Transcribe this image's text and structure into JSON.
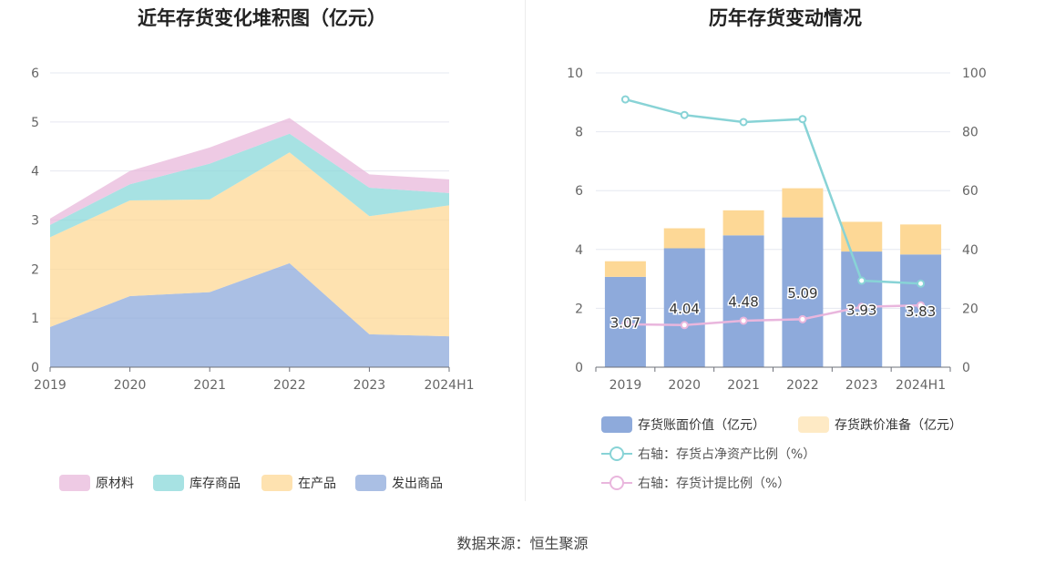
{
  "source_prefix": "数据来源：",
  "source_name": "恒生聚源",
  "chart_data": [
    {
      "type": "area",
      "stacked": true,
      "title": "近年存货变化堆积图（亿元）",
      "categories": [
        "2019",
        "2020",
        "2021",
        "2022",
        "2023",
        "2024H1"
      ],
      "ylim": [
        0,
        6
      ],
      "yticks": [
        0,
        1,
        2,
        3,
        4,
        5,
        6
      ],
      "grid": true,
      "legend_position": "bottom",
      "series": [
        {
          "name": "发出商品",
          "color": "#8eaadb",
          "values": [
            0.82,
            1.45,
            1.53,
            2.12,
            0.67,
            0.63
          ]
        },
        {
          "name": "在产品",
          "color": "#fdd896",
          "values": [
            1.83,
            1.95,
            1.89,
            2.26,
            2.41,
            2.67
          ]
        },
        {
          "name": "库存商品",
          "color": "#89d8da",
          "values": [
            0.25,
            0.33,
            0.73,
            0.38,
            0.58,
            0.25
          ]
        },
        {
          "name": "原材料",
          "color": "#e8b8db",
          "values": [
            0.13,
            0.27,
            0.33,
            0.32,
            0.27,
            0.28
          ]
        }
      ],
      "legend_order": [
        "原材料",
        "库存商品",
        "在产品",
        "发出商品"
      ]
    },
    {
      "type": "bar",
      "stacked": true,
      "title": "历年存货变动情况",
      "categories": [
        "2019",
        "2020",
        "2021",
        "2022",
        "2023",
        "2024H1"
      ],
      "ylim_left": [
        0,
        10
      ],
      "yticks_left": [
        0,
        2,
        4,
        6,
        8,
        10
      ],
      "ylim_right": [
        0,
        100
      ],
      "yticks_right": [
        0,
        20,
        40,
        60,
        80,
        100
      ],
      "grid": true,
      "legend_position": "bottom",
      "bar_series": [
        {
          "name": "存货账面价值（亿元）",
          "color": "#8eaadb",
          "values": [
            3.07,
            4.04,
            4.48,
            5.09,
            3.93,
            3.83
          ],
          "labels": [
            "3.07",
            "4.04",
            "4.48",
            "5.09",
            "3.93",
            "3.83"
          ]
        },
        {
          "name": "存货跌价准备（亿元）",
          "color": "#fdd896",
          "values": [
            0.53,
            0.68,
            0.85,
            0.99,
            1.01,
            1.02
          ]
        }
      ],
      "line_series": [
        {
          "name": "右轴：存货占净资产比例（%）",
          "color": "#88d3d6",
          "values": [
            91.0,
            85.7,
            83.3,
            84.3,
            29.4,
            28.4
          ]
        },
        {
          "name": "右轴：存货计提比例（%）",
          "color": "#e9b6dd",
          "values": [
            14.6,
            14.3,
            15.8,
            16.3,
            20.5,
            21.0
          ]
        }
      ]
    }
  ]
}
